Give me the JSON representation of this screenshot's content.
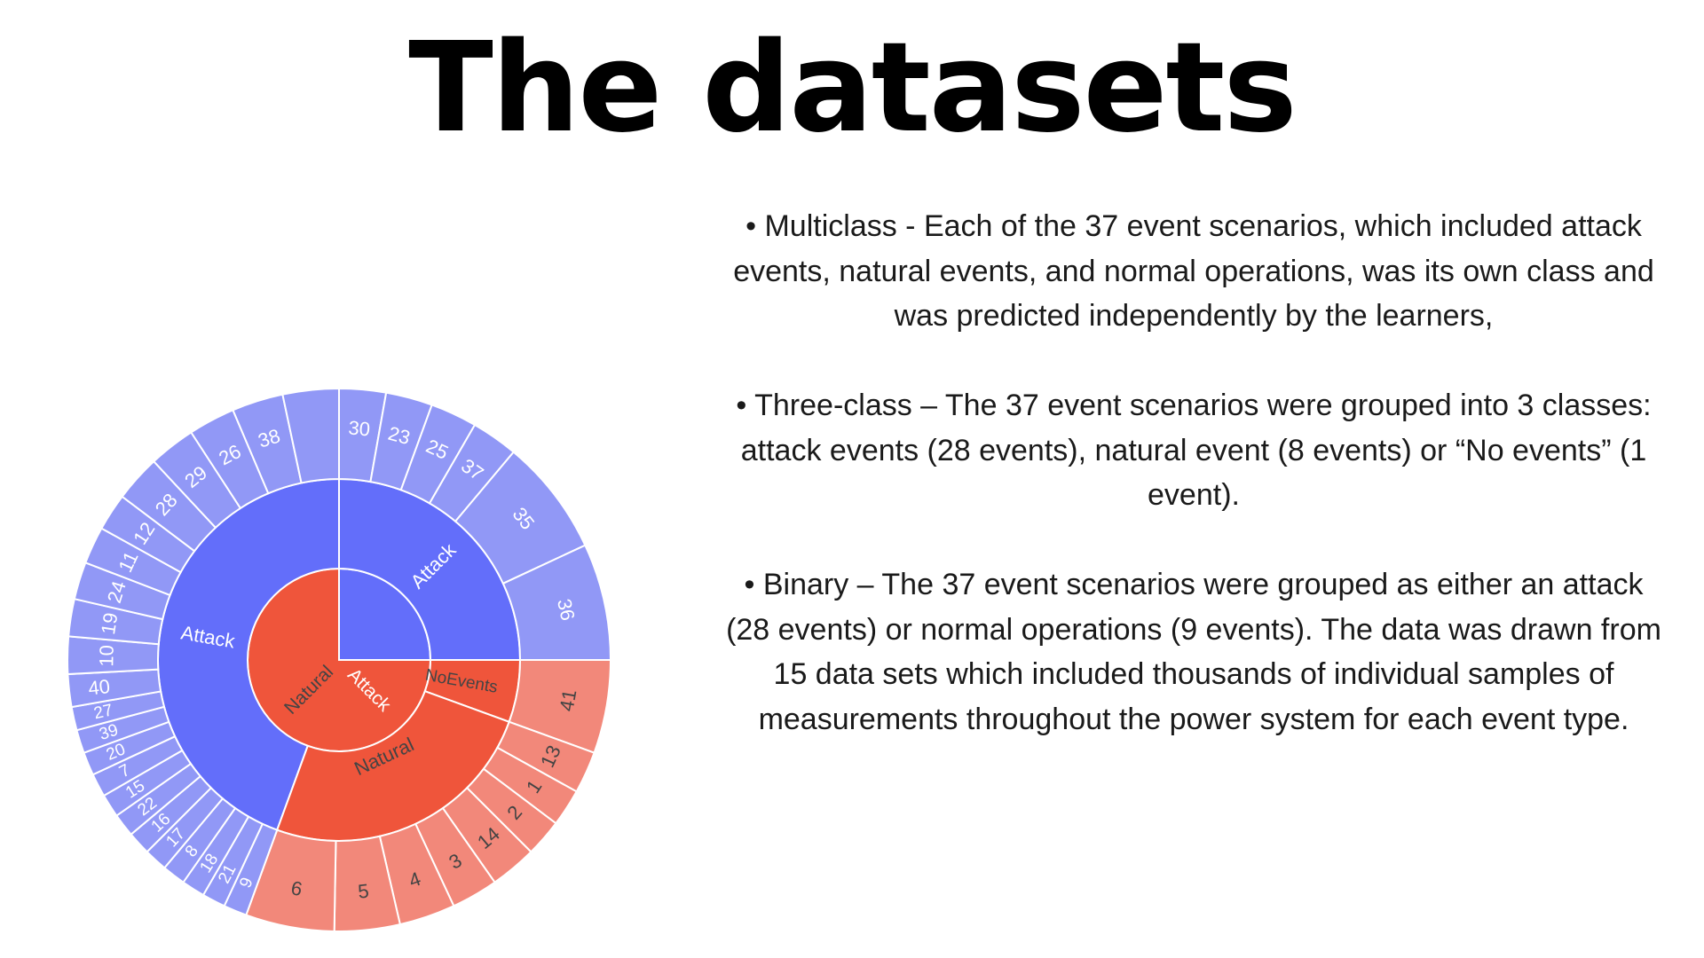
{
  "slide": {
    "title": "The datasets"
  },
  "bullets": [
    {
      "text": "• Multiclass - Each of the 37 event scenarios, which included attack events, natural events, and normal operations, was its own class and was predicted independently by the learners,"
    },
    {
      "text": "• Three-class – The 37 event scenarios were grouped into 3 classes: attack events (28 events), natural event (8 events) or “No events” (1 event)."
    },
    {
      "text": "• Binary – The 37 event scenarios were grouped as either an attack (28 events) or normal operations (9 events). The data was drawn from 15 data sets which included thousands of individual samples of measurements throughout the power system for each event type."
    }
  ],
  "chart_data": {
    "type": "sunburst",
    "colors": {
      "attack_outer": "#9198f6",
      "attack_middle": "#636efa",
      "natural_outer": "#f2887a",
      "natural_middle": "#ef553b",
      "outer_text_attack": "#ffffff",
      "outer_text_natural": "#444444",
      "middle_text_attack": "#ffffff",
      "middle_text_natural": "#444444",
      "stroke": "#ffffff"
    },
    "inner": [
      {
        "label": "Attack",
        "group": "attack",
        "start_deg": 0,
        "end_deg": 270
      },
      {
        "label": "Natural",
        "group": "natural",
        "start_deg": 90,
        "end_deg": 360
      }
    ],
    "middle": [
      {
        "label": "Attack",
        "group": "attack",
        "start_deg": 0,
        "end_deg": 90
      },
      {
        "label": "Attack",
        "group": "attack",
        "start_deg": 200,
        "end_deg": 360
      },
      {
        "label": "NoEvents",
        "group": "natural",
        "start_deg": 90,
        "end_deg": 110
      },
      {
        "label": "Natural",
        "group": "natural",
        "start_deg": 110,
        "end_deg": 200
      }
    ],
    "outer": [
      {
        "label": "30",
        "group": "attack",
        "start_deg": 0,
        "end_deg": 10
      },
      {
        "label": "23",
        "group": "attack",
        "start_deg": 10,
        "end_deg": 20
      },
      {
        "label": "25",
        "group": "attack",
        "start_deg": 20,
        "end_deg": 30
      },
      {
        "label": "37",
        "group": "attack",
        "start_deg": 30,
        "end_deg": 40
      },
      {
        "label": "35",
        "group": "attack",
        "start_deg": 40,
        "end_deg": 65
      },
      {
        "label": "36",
        "group": "attack",
        "start_deg": 65,
        "end_deg": 90
      },
      {
        "label": "41",
        "group": "natural",
        "start_deg": 90,
        "end_deg": 110
      },
      {
        "label": "13",
        "group": "natural",
        "start_deg": 110,
        "end_deg": 119
      },
      {
        "label": "1",
        "group": "natural",
        "start_deg": 119,
        "end_deg": 127
      },
      {
        "label": "2",
        "group": "natural",
        "start_deg": 127,
        "end_deg": 135
      },
      {
        "label": "14",
        "group": "natural",
        "start_deg": 135,
        "end_deg": 145
      },
      {
        "label": "3",
        "group": "natural",
        "start_deg": 145,
        "end_deg": 155
      },
      {
        "label": "4",
        "group": "natural",
        "start_deg": 155,
        "end_deg": 167
      },
      {
        "label": "5",
        "group": "natural",
        "start_deg": 167,
        "end_deg": 181
      },
      {
        "label": "6",
        "group": "natural",
        "start_deg": 181,
        "end_deg": 200
      },
      {
        "label": "9",
        "group": "attack",
        "start_deg": 200,
        "end_deg": 205
      },
      {
        "label": "21",
        "group": "attack",
        "start_deg": 205,
        "end_deg": 210
      },
      {
        "label": "18",
        "group": "attack",
        "start_deg": 210,
        "end_deg": 215
      },
      {
        "label": "8",
        "group": "attack",
        "start_deg": 215,
        "end_deg": 220
      },
      {
        "label": "17",
        "group": "attack",
        "start_deg": 220,
        "end_deg": 225
      },
      {
        "label": "16",
        "group": "attack",
        "start_deg": 225,
        "end_deg": 230
      },
      {
        "label": "22",
        "group": "attack",
        "start_deg": 230,
        "end_deg": 235
      },
      {
        "label": "15",
        "group": "attack",
        "start_deg": 235,
        "end_deg": 240
      },
      {
        "label": "7",
        "group": "attack",
        "start_deg": 240,
        "end_deg": 245
      },
      {
        "label": "20",
        "group": "attack",
        "start_deg": 245,
        "end_deg": 250
      },
      {
        "label": "39",
        "group": "attack",
        "start_deg": 250,
        "end_deg": 255
      },
      {
        "label": "27",
        "group": "attack",
        "start_deg": 255,
        "end_deg": 260
      },
      {
        "label": "40",
        "group": "attack",
        "start_deg": 260,
        "end_deg": 267
      },
      {
        "label": "10",
        "group": "attack",
        "start_deg": 267,
        "end_deg": 275
      },
      {
        "label": "19",
        "group": "attack",
        "start_deg": 275,
        "end_deg": 283
      },
      {
        "label": "24",
        "group": "attack",
        "start_deg": 283,
        "end_deg": 291
      },
      {
        "label": "11",
        "group": "attack",
        "start_deg": 291,
        "end_deg": 299
      },
      {
        "label": "12",
        "group": "attack",
        "start_deg": 299,
        "end_deg": 307
      },
      {
        "label": "28",
        "group": "attack",
        "start_deg": 307,
        "end_deg": 317
      },
      {
        "label": "29",
        "group": "attack",
        "start_deg": 317,
        "end_deg": 327
      },
      {
        "label": "26",
        "group": "attack",
        "start_deg": 327,
        "end_deg": 337
      },
      {
        "label": "38",
        "group": "attack",
        "start_deg": 337,
        "end_deg": 348
      },
      {
        "label": "blank",
        "group": "attack",
        "start_deg": 348,
        "end_deg": 360,
        "hidden_label": true
      }
    ]
  }
}
